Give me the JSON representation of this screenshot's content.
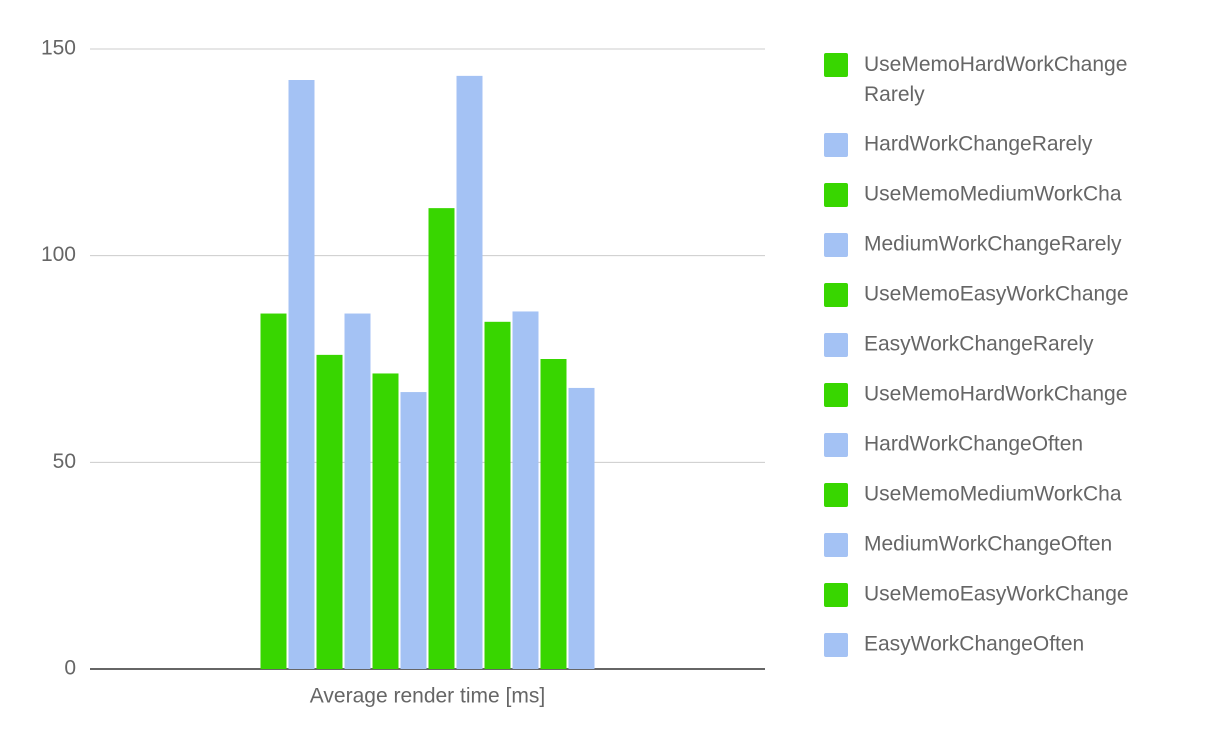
{
  "chart_data": {
    "type": "bar",
    "categories": [
      "Average render time [ms]"
    ],
    "series": [
      {
        "name": "UseMemoHardWorkChange Rarely",
        "color": "#38d600",
        "values": [
          86
        ]
      },
      {
        "name": "HardWorkChangeRarely",
        "color": "#a4c2f4",
        "values": [
          142.5
        ]
      },
      {
        "name": "UseMemoMediumWorkCha",
        "color": "#38d600",
        "values": [
          76
        ]
      },
      {
        "name": "MediumWorkChangeRarely",
        "color": "#a4c2f4",
        "values": [
          86
        ]
      },
      {
        "name": "UseMemoEasyWorkChange",
        "color": "#38d600",
        "values": [
          71.5
        ]
      },
      {
        "name": "EasyWorkChangeRarely",
        "color": "#a4c2f4",
        "values": [
          67
        ]
      },
      {
        "name": "UseMemoHardWorkChange",
        "color": "#38d600",
        "values": [
          111.5
        ]
      },
      {
        "name": "HardWorkChangeOften",
        "color": "#a4c2f4",
        "values": [
          143.5
        ]
      },
      {
        "name": "UseMemoMediumWorkCha",
        "color": "#38d600",
        "values": [
          84
        ]
      },
      {
        "name": "MediumWorkChangeOften",
        "color": "#a4c2f4",
        "values": [
          86.5
        ]
      },
      {
        "name": "UseMemoEasyWorkChange",
        "color": "#38d600",
        "values": [
          75
        ]
      },
      {
        "name": "EasyWorkChangeOften",
        "color": "#a4c2f4",
        "values": [
          68
        ]
      }
    ],
    "ylim": [
      0,
      150
    ],
    "yticks": [
      0,
      50,
      100,
      150
    ],
    "grid": true,
    "legend": "right"
  }
}
